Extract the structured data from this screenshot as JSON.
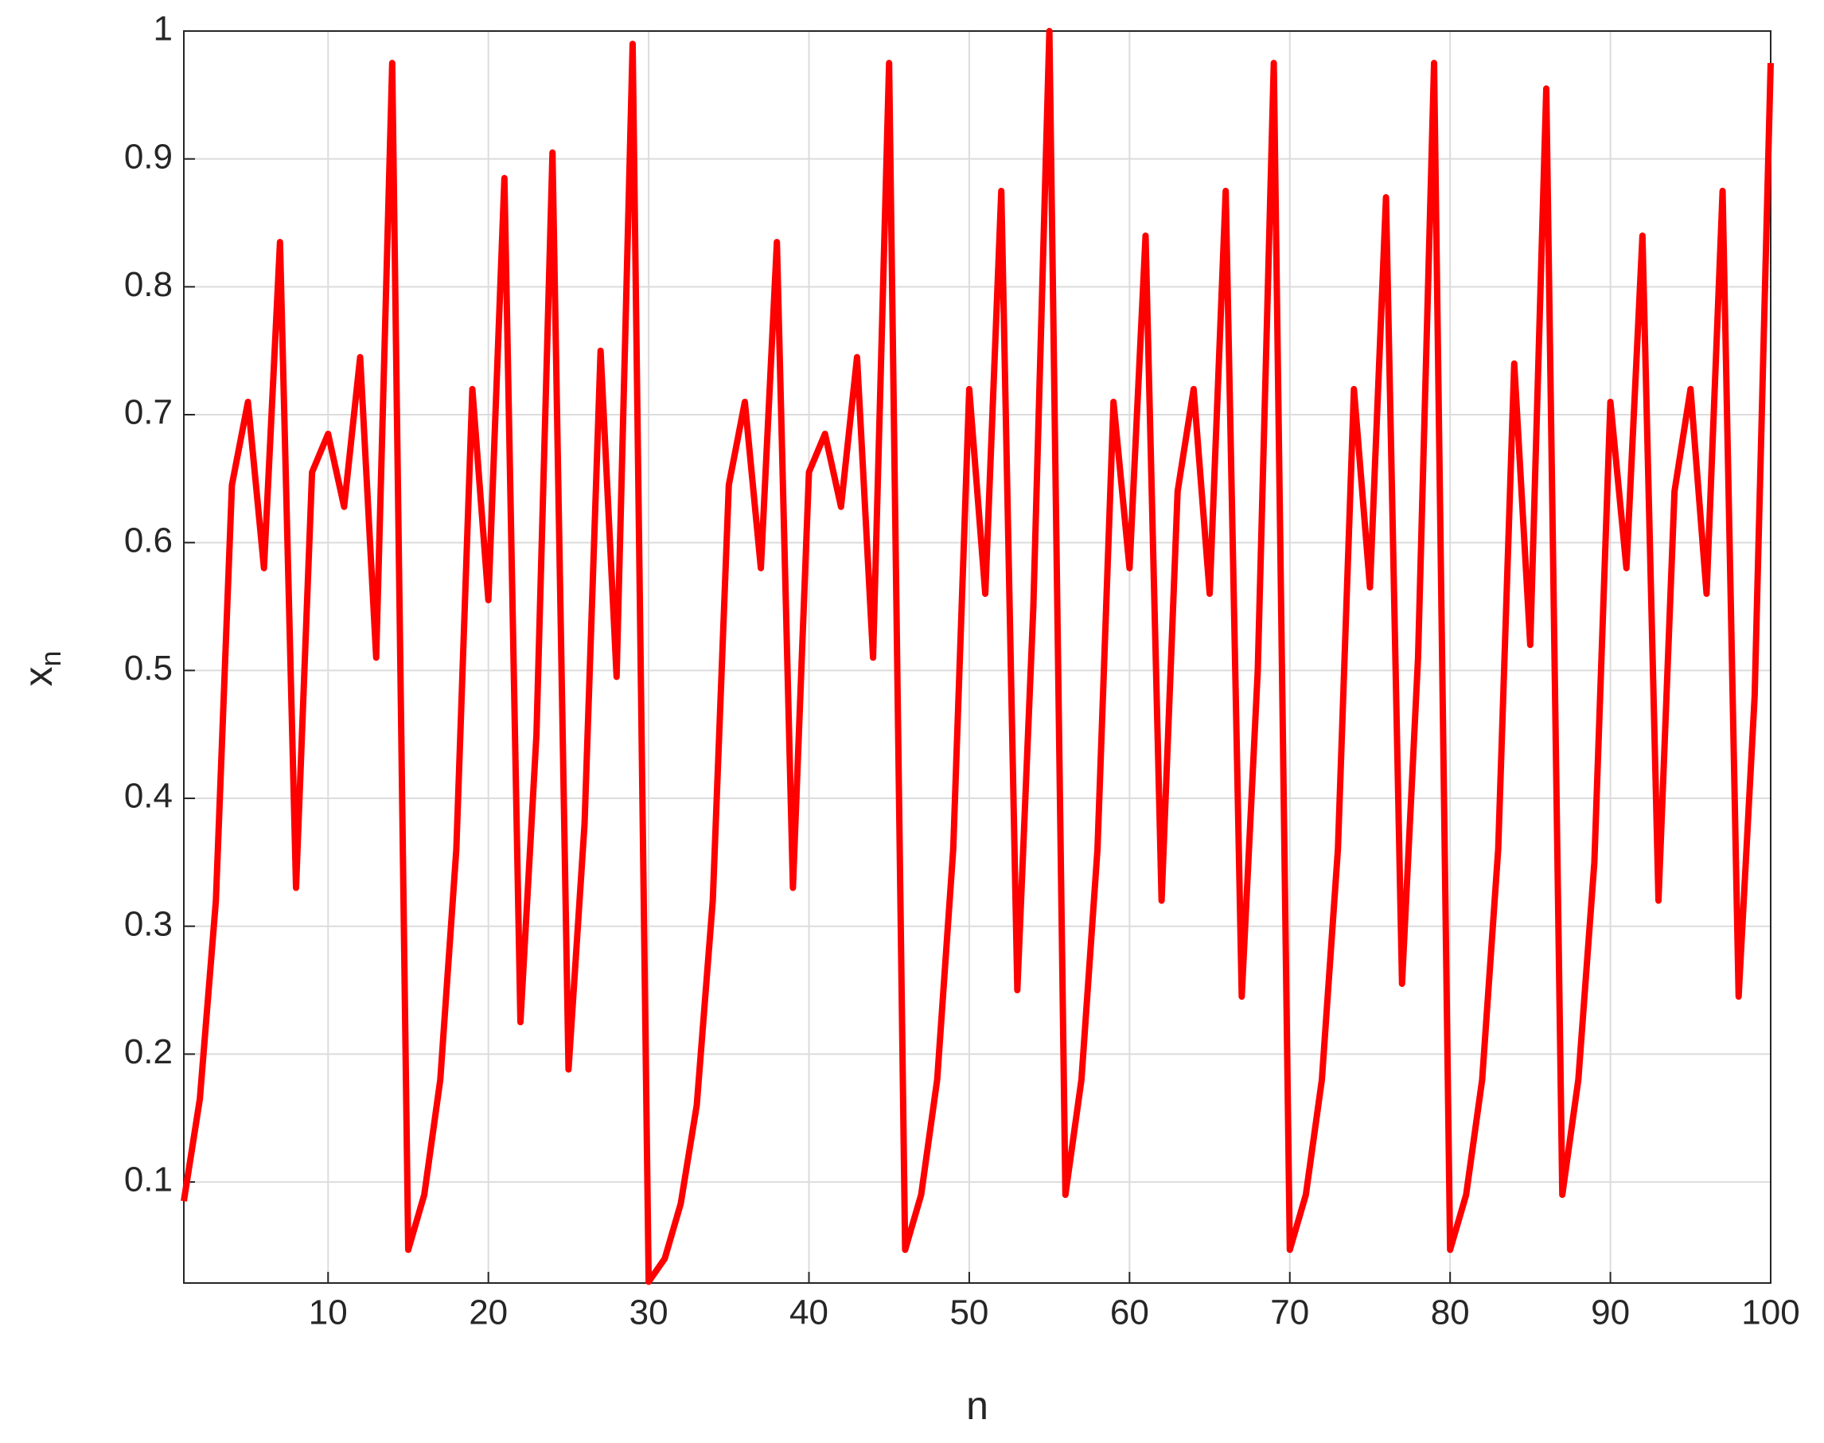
{
  "chart_data": {
    "type": "line",
    "x_label": "n",
    "y_label": {
      "base": "x",
      "sub": "n"
    },
    "x": [
      1,
      2,
      3,
      4,
      5,
      6,
      7,
      8,
      9,
      10,
      11,
      12,
      13,
      14,
      15,
      16,
      17,
      18,
      19,
      20,
      21,
      22,
      23,
      24,
      25,
      26,
      27,
      28,
      29,
      30,
      31,
      32,
      33,
      34,
      35,
      36,
      37,
      38,
      39,
      40,
      41,
      42,
      43,
      44,
      45,
      46,
      47,
      48,
      49,
      50,
      51,
      52,
      53,
      54,
      55,
      56,
      57,
      58,
      59,
      60,
      61,
      62,
      63,
      64,
      65,
      66,
      67,
      68,
      69,
      70,
      71,
      72,
      73,
      74,
      75,
      76,
      77,
      78,
      79,
      80,
      81,
      82,
      83,
      84,
      85,
      86,
      87,
      88,
      89,
      90,
      91,
      92,
      93,
      94,
      95,
      96,
      97,
      98,
      99,
      100
    ],
    "series": [
      {
        "color": "#ff0000",
        "values": [
          0.085,
          0.165,
          0.32,
          0.645,
          0.71,
          0.58,
          0.835,
          0.33,
          0.655,
          0.685,
          0.628,
          0.745,
          0.51,
          0.975,
          0.047,
          0.09,
          0.18,
          0.36,
          0.72,
          0.555,
          0.885,
          0.225,
          0.45,
          0.905,
          0.188,
          0.38,
          0.75,
          0.495,
          0.99,
          0.022,
          0.04,
          0.083,
          0.16,
          0.32,
          0.645,
          0.71,
          0.58,
          0.835,
          0.33,
          0.655,
          0.685,
          0.628,
          0.745,
          0.51,
          0.975,
          0.047,
          0.09,
          0.18,
          0.36,
          0.72,
          0.56,
          0.875,
          0.25,
          0.55,
          1.0,
          0.09,
          0.18,
          0.36,
          0.71,
          0.58,
          0.84,
          0.32,
          0.64,
          0.72,
          0.56,
          0.875,
          0.245,
          0.5,
          0.975,
          0.047,
          0.09,
          0.18,
          0.36,
          0.72,
          0.565,
          0.87,
          0.255,
          0.51,
          0.975,
          0.047,
          0.09,
          0.18,
          0.36,
          0.74,
          0.52,
          0.955,
          0.09,
          0.18,
          0.35,
          0.71,
          0.58,
          0.84,
          0.32,
          0.64,
          0.72,
          0.56,
          0.875,
          0.245,
          0.48,
          0.975
        ]
      }
    ],
    "xlim": [
      1,
      100
    ],
    "ylim": [
      0.021,
      1
    ],
    "xticks": [
      10,
      20,
      30,
      40,
      50,
      60,
      70,
      80,
      90,
      100
    ],
    "yticks": [
      0.1,
      0.2,
      0.3,
      0.4,
      0.5,
      0.6,
      0.7,
      0.8,
      0.9,
      1
    ],
    "grid": true
  }
}
